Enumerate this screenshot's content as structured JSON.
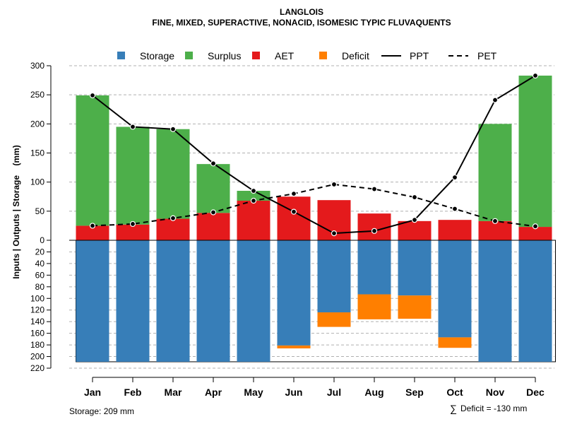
{
  "chart_data": {
    "type": "bar",
    "title": "LANGLOIS",
    "subtitle": "FINE, MIXED, SUPERACTIVE, NONACID, ISOMESIC TYPIC FLUVAQUENTS",
    "ylabel": "Inputs | Outputs | Storage    (mm)",
    "ylim": [
      -220,
      300
    ],
    "y_ticks_upper": [
      300,
      250,
      200,
      150,
      100,
      50,
      0
    ],
    "y_ticks_lower": [
      20,
      40,
      60,
      80,
      100,
      120,
      140,
      160,
      180,
      200,
      220
    ],
    "grid": true,
    "legend_position": "top",
    "legend": [
      {
        "label": "Storage",
        "kind": "square",
        "color": "#377EB8"
      },
      {
        "label": "Surplus",
        "kind": "square",
        "color": "#4DAF4A"
      },
      {
        "label": "AET",
        "kind": "square",
        "color": "#E41A1C"
      },
      {
        "label": "Deficit",
        "kind": "square",
        "color": "#FF7F00"
      },
      {
        "label": "PPT",
        "kind": "line-solid",
        "color": "#000000"
      },
      {
        "label": "PET",
        "kind": "line-dashed",
        "color": "#000000"
      }
    ],
    "categories": [
      "Jan",
      "Feb",
      "Mar",
      "Apr",
      "May",
      "Jun",
      "Jul",
      "Aug",
      "Sep",
      "Oct",
      "Nov",
      "Dec"
    ],
    "series": [
      {
        "name": "AET",
        "color": "#E41A1C",
        "values": [
          25,
          27,
          37,
          47,
          68,
          75,
          69,
          46,
          33,
          35,
          33,
          23
        ]
      },
      {
        "name": "Surplus",
        "color": "#4DAF4A",
        "values": [
          224,
          168,
          154,
          84,
          17,
          0,
          0,
          0,
          0,
          0,
          167,
          260
        ]
      },
      {
        "name": "Storage",
        "color": "#377EB8",
        "values": [
          209,
          209,
          209,
          209,
          209,
          181,
          124,
          93,
          95,
          167,
          209,
          209
        ]
      },
      {
        "name": "Deficit",
        "color": "#FF7F00",
        "values": [
          0,
          0,
          0,
          0,
          0,
          5,
          25,
          43,
          40,
          18,
          0,
          0
        ]
      },
      {
        "name": "PPT",
        "color": "#000000",
        "values": [
          249,
          195,
          191,
          132,
          85,
          49,
          12,
          16,
          35,
          108,
          241,
          283
        ]
      },
      {
        "name": "PET",
        "color": "#000000",
        "values": [
          25,
          28,
          38,
          48,
          68,
          80,
          96,
          88,
          74,
          54,
          33,
          24
        ]
      }
    ],
    "footnotes": {
      "storage": "Storage: 209 mm",
      "deficit_symbol": "∑",
      "deficit": "Deficit = -130 mm"
    }
  }
}
